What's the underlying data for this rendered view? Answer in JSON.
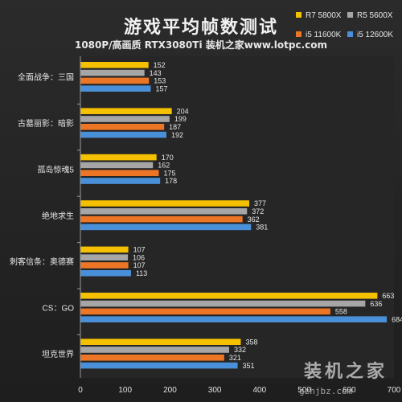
{
  "chart_data": {
    "type": "bar",
    "orientation": "horizontal",
    "title": "游戏平均帧数测试",
    "subtitle": "1080P/高画质 RTX3080Ti 装机之家www.lotpc.com",
    "categories": [
      "全面战争：三国",
      "古墓丽影：暗影",
      "孤岛惊魂5",
      "绝地求生",
      "刺客信条：奥德赛",
      "CS：GO",
      "坦克世界"
    ],
    "series": [
      {
        "name": "R7 5800X",
        "color": "#f5c000",
        "values": [
          152,
          204,
          170,
          377,
          107,
          663,
          358
        ]
      },
      {
        "name": "R5 5600X",
        "color": "#a6a6a6",
        "values": [
          143,
          199,
          162,
          372,
          106,
          636,
          332
        ]
      },
      {
        "name": "i5 11600K",
        "color": "#ec7626",
        "values": [
          153,
          187,
          175,
          362,
          107,
          558,
          321
        ]
      },
      {
        "name": "i5 12600K",
        "color": "#4a90d9",
        "values": [
          157,
          192,
          178,
          381,
          113,
          684,
          351
        ]
      }
    ],
    "xlim": [
      0,
      700
    ],
    "xticks": [
      "0",
      "100",
      "200",
      "300",
      "400",
      "500",
      "600",
      "700"
    ],
    "legend_position": "top-right",
    "grid": false
  },
  "watermark": {
    "text": "装机之家",
    "url": "gzhjbz.com"
  }
}
